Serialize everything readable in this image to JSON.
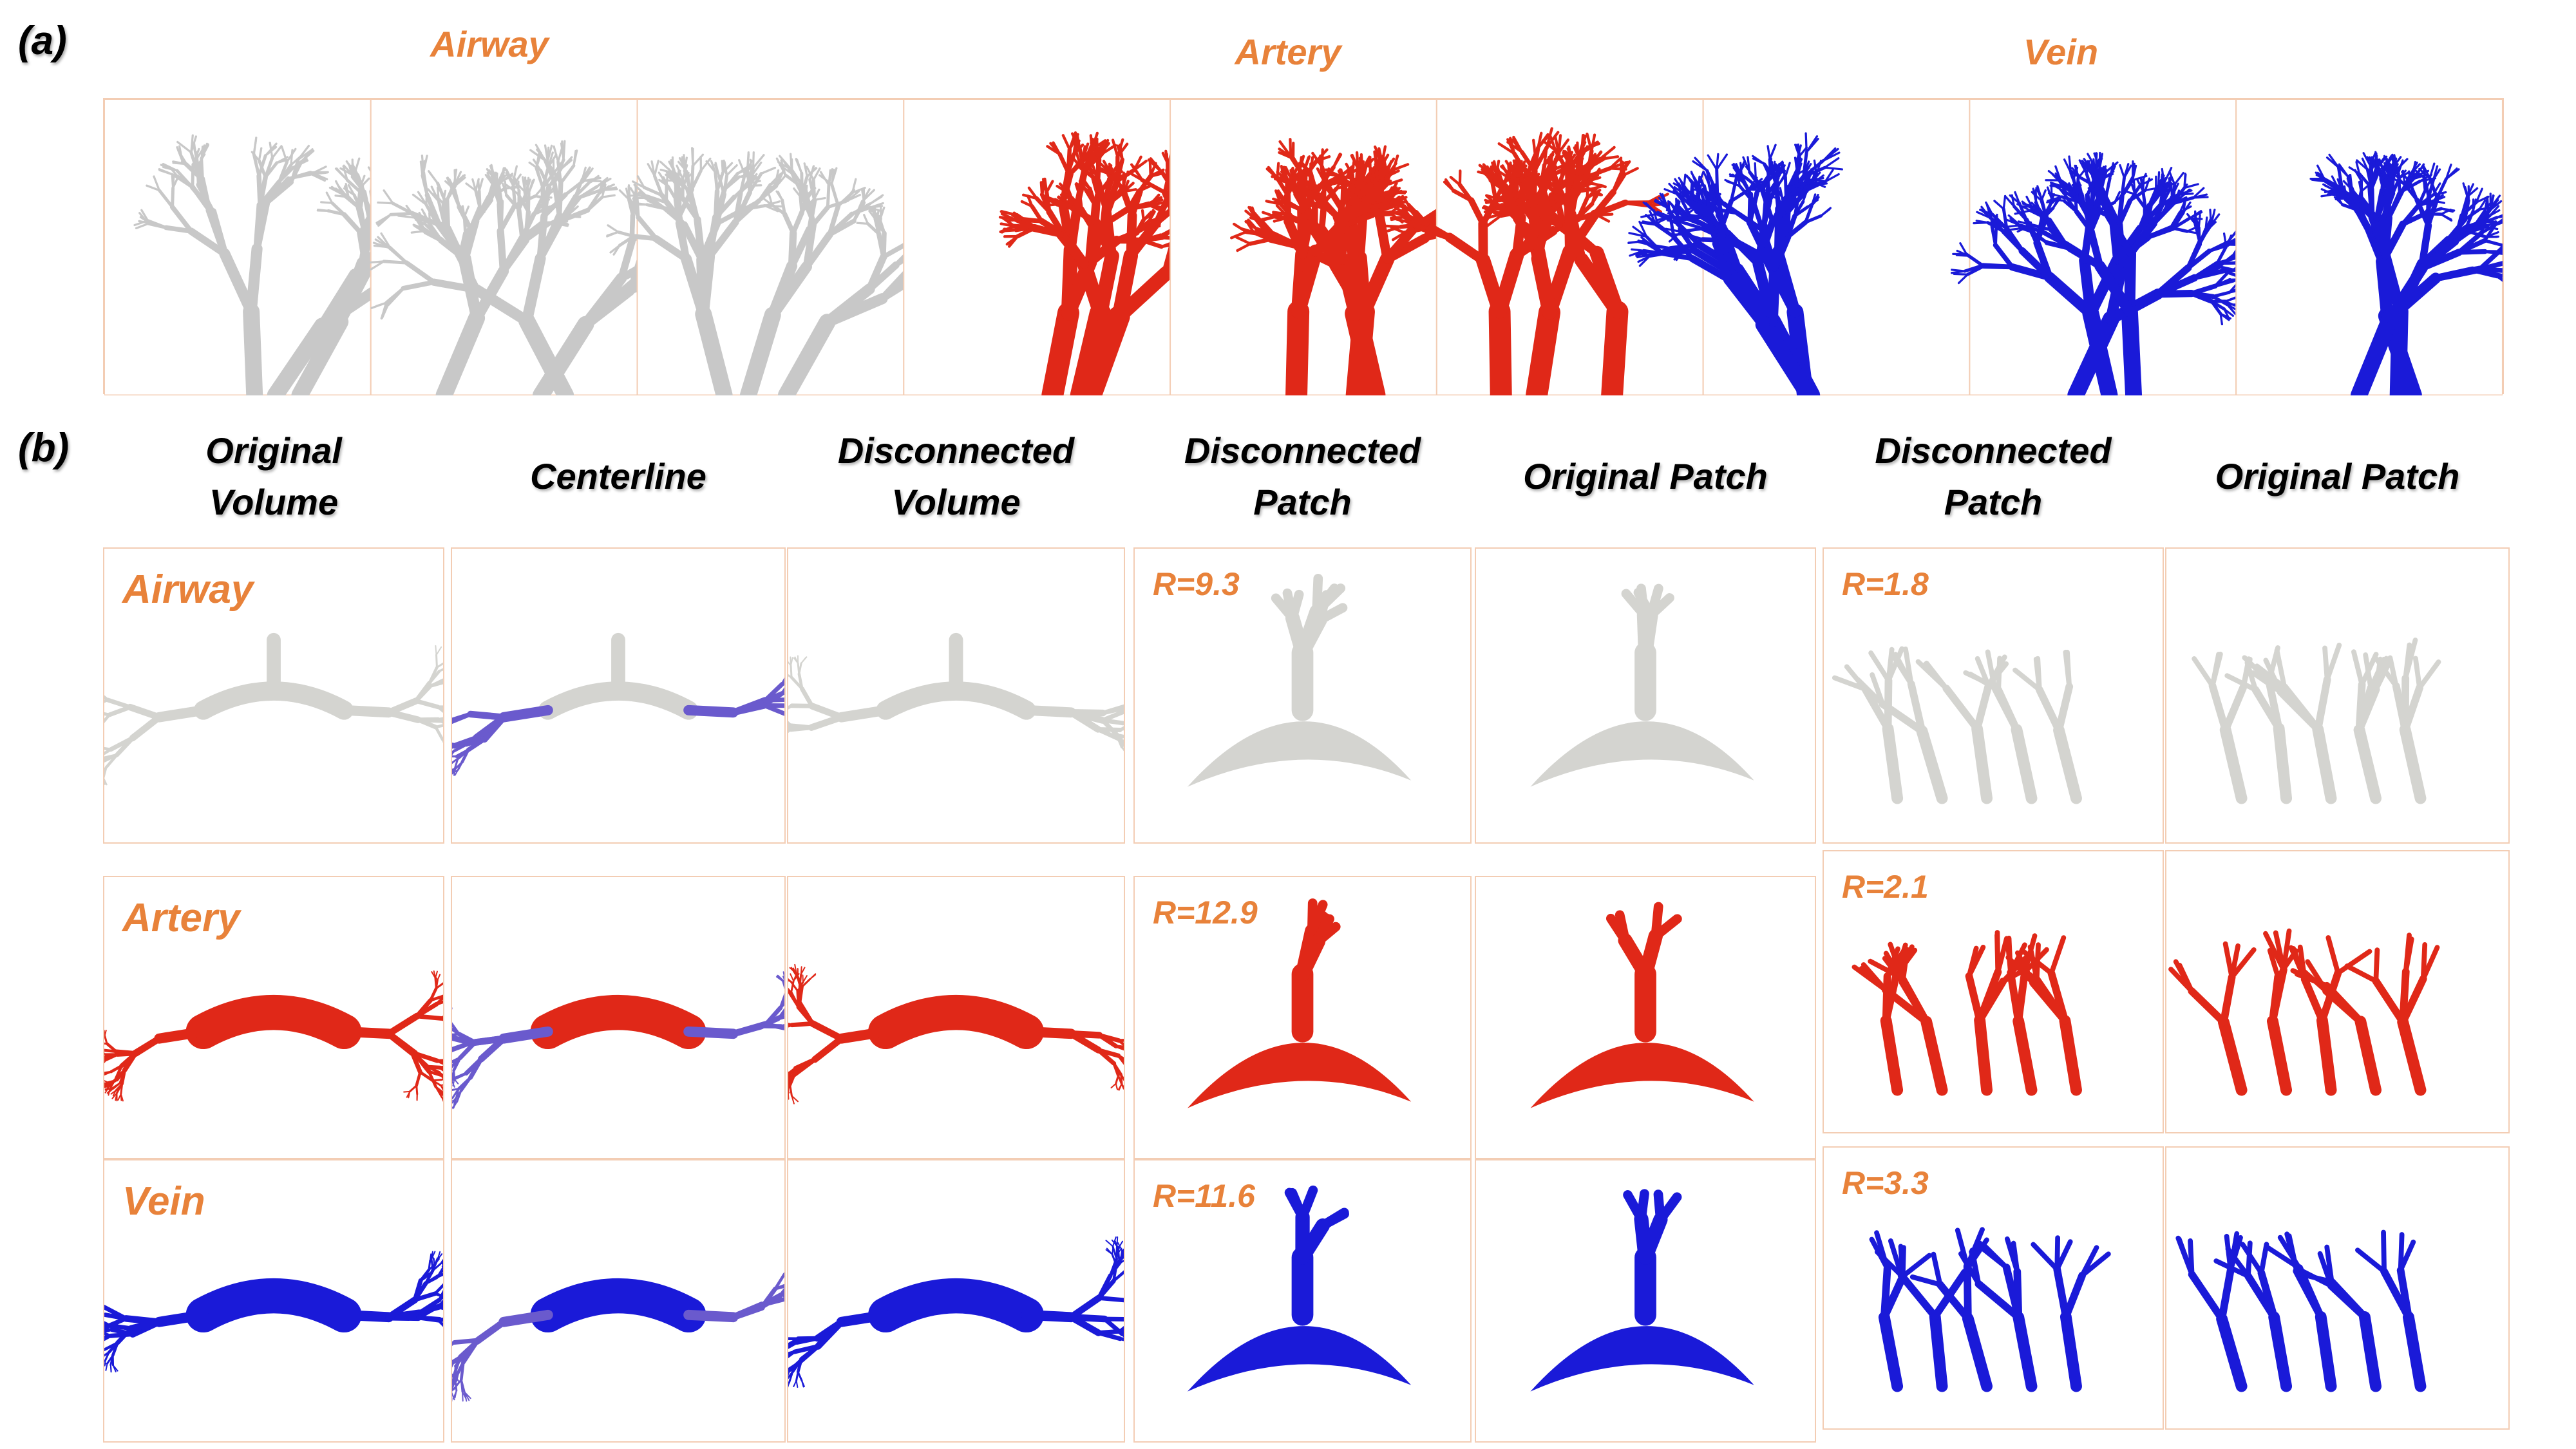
{
  "panel_a": {
    "label": "(a)",
    "categories": [
      {
        "name": "Airway",
        "color": "#c8c8c8"
      },
      {
        "name": "Artery",
        "color": "#e02818"
      },
      {
        "name": "Vein",
        "color": "#1a1ad8"
      }
    ]
  },
  "panel_b": {
    "label": "(b)",
    "columns": [
      "Original\nVolume",
      "Centerline",
      "Disconnected\nVolume",
      "Disconnected\nPatch",
      "Original Patch",
      "Disconnected\nPatch",
      "Original Patch"
    ],
    "rows": [
      {
        "label": "Airway",
        "color": "#d4d4d0",
        "r1": "R=9.3",
        "r2": "R=1.8"
      },
      {
        "label": "Artery",
        "color": "#e02818",
        "r1": "R=12.9",
        "r2": "R=2.1"
      },
      {
        "label": "Vein",
        "color": "#1a1ad8",
        "r1": "R=11.6",
        "r2": "R=3.3"
      }
    ]
  }
}
